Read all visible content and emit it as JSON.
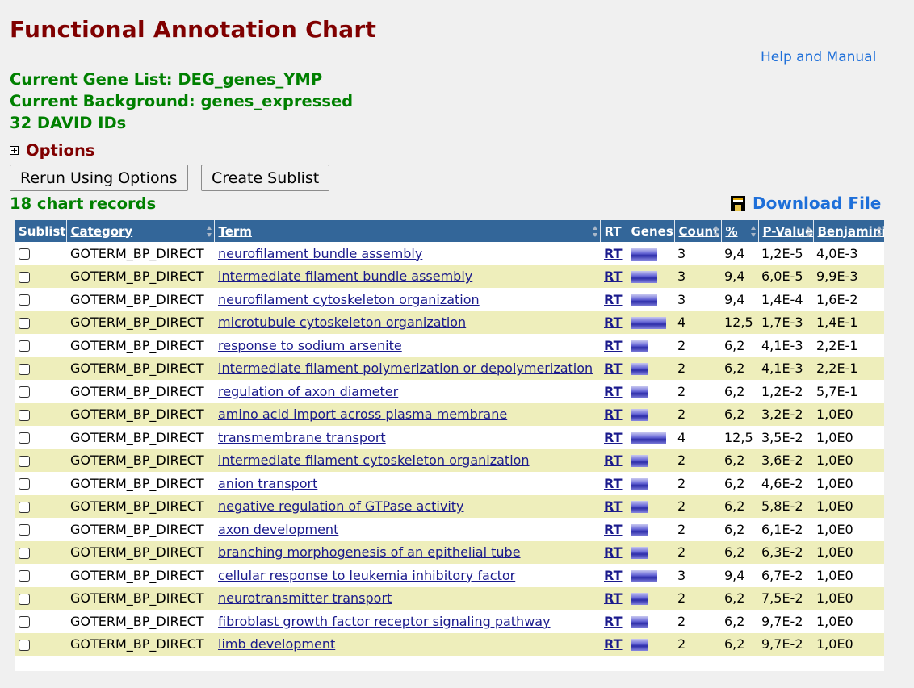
{
  "page": {
    "title": "Functional Annotation Chart",
    "help_link": "Help and Manual",
    "gene_list": "Current Gene List: DEG_genes_YMP",
    "background": "Current Background: genes_expressed",
    "david_ids": "32 DAVID IDs",
    "options_label": "Options",
    "rerun_button": "Rerun Using Options",
    "sublist_button": "Create Sublist",
    "record_count": "18 chart records",
    "download_label": "Download File"
  },
  "table": {
    "headers": {
      "sublist": "Sublist",
      "category": "Category",
      "term": "Term",
      "rt": "RT",
      "genes": "Genes",
      "count": "Count",
      "percent": "%",
      "pvalue": "P-Value",
      "benjamini": "Benjamini"
    },
    "rt_label": "RT",
    "gene_bar_max_count": 4,
    "rows": [
      {
        "category": "GOTERM_BP_DIRECT",
        "term": "neurofilament bundle assembly",
        "count": 3,
        "percent": "9,4",
        "pvalue": "1,2E-5",
        "benjamini": "4,0E-3"
      },
      {
        "category": "GOTERM_BP_DIRECT",
        "term": "intermediate filament bundle assembly",
        "count": 3,
        "percent": "9,4",
        "pvalue": "6,0E-5",
        "benjamini": "9,9E-3"
      },
      {
        "category": "GOTERM_BP_DIRECT",
        "term": "neurofilament cytoskeleton organization",
        "count": 3,
        "percent": "9,4",
        "pvalue": "1,4E-4",
        "benjamini": "1,6E-2"
      },
      {
        "category": "GOTERM_BP_DIRECT",
        "term": "microtubule cytoskeleton organization",
        "count": 4,
        "percent": "12,5",
        "pvalue": "1,7E-3",
        "benjamini": "1,4E-1"
      },
      {
        "category": "GOTERM_BP_DIRECT",
        "term": "response to sodium arsenite",
        "count": 2,
        "percent": "6,2",
        "pvalue": "4,1E-3",
        "benjamini": "2,2E-1"
      },
      {
        "category": "GOTERM_BP_DIRECT",
        "term": "intermediate filament polymerization or depolymerization",
        "count": 2,
        "percent": "6,2",
        "pvalue": "4,1E-3",
        "benjamini": "2,2E-1"
      },
      {
        "category": "GOTERM_BP_DIRECT",
        "term": "regulation of axon diameter",
        "count": 2,
        "percent": "6,2",
        "pvalue": "1,2E-2",
        "benjamini": "5,7E-1"
      },
      {
        "category": "GOTERM_BP_DIRECT",
        "term": "amino acid import across plasma membrane",
        "count": 2,
        "percent": "6,2",
        "pvalue": "3,2E-2",
        "benjamini": "1,0E0"
      },
      {
        "category": "GOTERM_BP_DIRECT",
        "term": "transmembrane transport",
        "count": 4,
        "percent": "12,5",
        "pvalue": "3,5E-2",
        "benjamini": "1,0E0"
      },
      {
        "category": "GOTERM_BP_DIRECT",
        "term": "intermediate filament cytoskeleton organization",
        "count": 2,
        "percent": "6,2",
        "pvalue": "3,6E-2",
        "benjamini": "1,0E0"
      },
      {
        "category": "GOTERM_BP_DIRECT",
        "term": "anion transport",
        "count": 2,
        "percent": "6,2",
        "pvalue": "4,6E-2",
        "benjamini": "1,0E0"
      },
      {
        "category": "GOTERM_BP_DIRECT",
        "term": "negative regulation of GTPase activity",
        "count": 2,
        "percent": "6,2",
        "pvalue": "5,8E-2",
        "benjamini": "1,0E0"
      },
      {
        "category": "GOTERM_BP_DIRECT",
        "term": "axon development",
        "count": 2,
        "percent": "6,2",
        "pvalue": "6,1E-2",
        "benjamini": "1,0E0"
      },
      {
        "category": "GOTERM_BP_DIRECT",
        "term": "branching morphogenesis of an epithelial tube",
        "count": 2,
        "percent": "6,2",
        "pvalue": "6,3E-2",
        "benjamini": "1,0E0"
      },
      {
        "category": "GOTERM_BP_DIRECT",
        "term": "cellular response to leukemia inhibitory factor",
        "count": 3,
        "percent": "9,4",
        "pvalue": "6,7E-2",
        "benjamini": "1,0E0"
      },
      {
        "category": "GOTERM_BP_DIRECT",
        "term": "neurotransmitter transport",
        "count": 2,
        "percent": "6,2",
        "pvalue": "7,5E-2",
        "benjamini": "1,0E0"
      },
      {
        "category": "GOTERM_BP_DIRECT",
        "term": "fibroblast growth factor receptor signaling pathway",
        "count": 2,
        "percent": "6,2",
        "pvalue": "9,7E-2",
        "benjamini": "1,0E0"
      },
      {
        "category": "GOTERM_BP_DIRECT",
        "term": "limb development",
        "count": 2,
        "percent": "6,2",
        "pvalue": "9,7E-2",
        "benjamini": "1,0E0"
      }
    ]
  }
}
